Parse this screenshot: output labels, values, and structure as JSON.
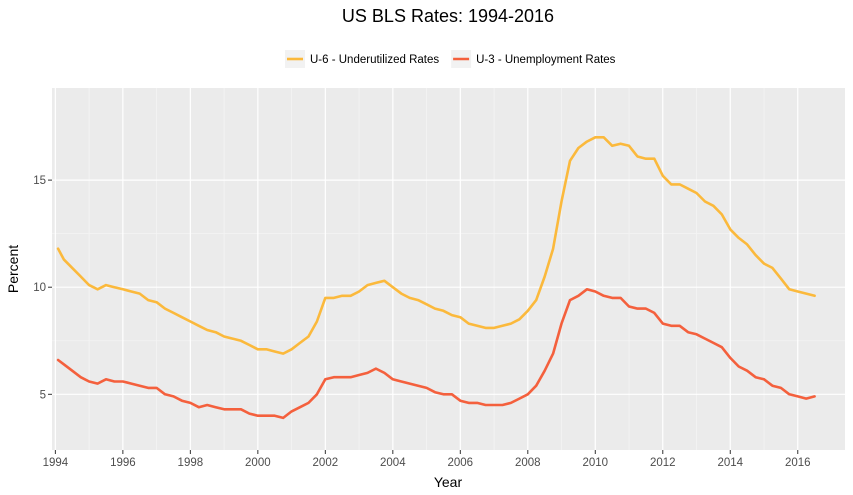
{
  "chart_data": {
    "type": "line",
    "title": "US BLS Rates: 1994-2016",
    "xlabel": "Year",
    "ylabel": "Percent",
    "xlim": [
      1993.9,
      2017.4
    ],
    "ylim": [
      2.4,
      19.3
    ],
    "x_ticks": [
      1994,
      1996,
      1998,
      2000,
      2002,
      2004,
      2006,
      2008,
      2010,
      2012,
      2014,
      2016
    ],
    "y_ticks": [
      5,
      10,
      15
    ],
    "grid": true,
    "legend_position": "top",
    "series": [
      {
        "name": "U-6 - Underutilized Rates",
        "color": "#FBB93C",
        "x": [
          1994.08,
          1994.25,
          1994.5,
          1994.75,
          1995.0,
          1995.25,
          1995.5,
          1995.75,
          1996.0,
          1996.25,
          1996.5,
          1996.75,
          1997.0,
          1997.25,
          1997.5,
          1997.75,
          1998.0,
          1998.25,
          1998.5,
          1998.75,
          1999.0,
          1999.25,
          1999.5,
          1999.75,
          2000.0,
          2000.25,
          2000.5,
          2000.75,
          2001.0,
          2001.25,
          2001.5,
          2001.75,
          2002.0,
          2002.25,
          2002.5,
          2002.75,
          2003.0,
          2003.25,
          2003.5,
          2003.75,
          2004.0,
          2004.25,
          2004.5,
          2004.75,
          2005.0,
          2005.25,
          2005.5,
          2005.75,
          2006.0,
          2006.25,
          2006.5,
          2006.75,
          2007.0,
          2007.25,
          2007.5,
          2007.75,
          2008.0,
          2008.25,
          2008.5,
          2008.75,
          2009.0,
          2009.25,
          2009.5,
          2009.75,
          2010.0,
          2010.25,
          2010.5,
          2010.75,
          2011.0,
          2011.25,
          2011.5,
          2011.75,
          2012.0,
          2012.25,
          2012.5,
          2012.75,
          2013.0,
          2013.25,
          2013.5,
          2013.75,
          2014.0,
          2014.25,
          2014.5,
          2014.75,
          2015.0,
          2015.25,
          2015.5,
          2015.75,
          2016.0,
          2016.25,
          2016.5
        ],
        "values": [
          11.8,
          11.3,
          10.9,
          10.5,
          10.1,
          9.9,
          10.1,
          10.0,
          9.9,
          9.8,
          9.7,
          9.4,
          9.3,
          9.0,
          8.8,
          8.6,
          8.4,
          8.2,
          8.0,
          7.9,
          7.7,
          7.6,
          7.5,
          7.3,
          7.1,
          7.1,
          7.0,
          6.9,
          7.1,
          7.4,
          7.7,
          8.4,
          9.5,
          9.5,
          9.6,
          9.6,
          9.8,
          10.1,
          10.2,
          10.3,
          10.0,
          9.7,
          9.5,
          9.4,
          9.2,
          9.0,
          8.9,
          8.7,
          8.6,
          8.3,
          8.2,
          8.1,
          8.1,
          8.2,
          8.3,
          8.5,
          8.9,
          9.4,
          10.5,
          11.8,
          14.0,
          15.9,
          16.5,
          16.8,
          17.0,
          17.0,
          16.6,
          16.7,
          16.6,
          16.1,
          16.0,
          16.0,
          15.2,
          14.8,
          14.8,
          14.6,
          14.4,
          14.0,
          13.8,
          13.4,
          12.7,
          12.3,
          12.0,
          11.5,
          11.1,
          10.9,
          10.4,
          9.9,
          9.8,
          9.7,
          9.6
        ]
      },
      {
        "name": "U-3 - Unemployment Rates",
        "color": "#F4603D",
        "x": [
          1994.08,
          1994.25,
          1994.5,
          1994.75,
          1995.0,
          1995.25,
          1995.5,
          1995.75,
          1996.0,
          1996.25,
          1996.5,
          1996.75,
          1997.0,
          1997.25,
          1997.5,
          1997.75,
          1998.0,
          1998.25,
          1998.5,
          1998.75,
          1999.0,
          1999.25,
          1999.5,
          1999.75,
          2000.0,
          2000.25,
          2000.5,
          2000.75,
          2001.0,
          2001.25,
          2001.5,
          2001.75,
          2002.0,
          2002.25,
          2002.5,
          2002.75,
          2003.0,
          2003.25,
          2003.5,
          2003.75,
          2004.0,
          2004.25,
          2004.5,
          2004.75,
          2005.0,
          2005.25,
          2005.5,
          2005.75,
          2006.0,
          2006.25,
          2006.5,
          2006.75,
          2007.0,
          2007.25,
          2007.5,
          2007.75,
          2008.0,
          2008.25,
          2008.5,
          2008.75,
          2009.0,
          2009.25,
          2009.5,
          2009.75,
          2010.0,
          2010.25,
          2010.5,
          2010.75,
          2011.0,
          2011.25,
          2011.5,
          2011.75,
          2012.0,
          2012.25,
          2012.5,
          2012.75,
          2013.0,
          2013.25,
          2013.5,
          2013.75,
          2014.0,
          2014.25,
          2014.5,
          2014.75,
          2015.0,
          2015.25,
          2015.5,
          2015.75,
          2016.0,
          2016.25,
          2016.5
        ],
        "values": [
          6.6,
          6.4,
          6.1,
          5.8,
          5.6,
          5.5,
          5.7,
          5.6,
          5.6,
          5.5,
          5.4,
          5.3,
          5.3,
          5.0,
          4.9,
          4.7,
          4.6,
          4.4,
          4.5,
          4.4,
          4.3,
          4.3,
          4.3,
          4.1,
          4.0,
          4.0,
          4.0,
          3.9,
          4.2,
          4.4,
          4.6,
          5.0,
          5.7,
          5.8,
          5.8,
          5.8,
          5.9,
          6.0,
          6.2,
          6.0,
          5.7,
          5.6,
          5.5,
          5.4,
          5.3,
          5.1,
          5.0,
          5.0,
          4.7,
          4.6,
          4.6,
          4.5,
          4.5,
          4.5,
          4.6,
          4.8,
          5.0,
          5.4,
          6.1,
          6.9,
          8.3,
          9.4,
          9.6,
          9.9,
          9.8,
          9.6,
          9.5,
          9.5,
          9.1,
          9.0,
          9.0,
          8.8,
          8.3,
          8.2,
          8.2,
          7.9,
          7.8,
          7.6,
          7.4,
          7.2,
          6.7,
          6.3,
          6.1,
          5.8,
          5.7,
          5.4,
          5.3,
          5.0,
          4.9,
          4.8,
          4.9
        ]
      }
    ]
  }
}
